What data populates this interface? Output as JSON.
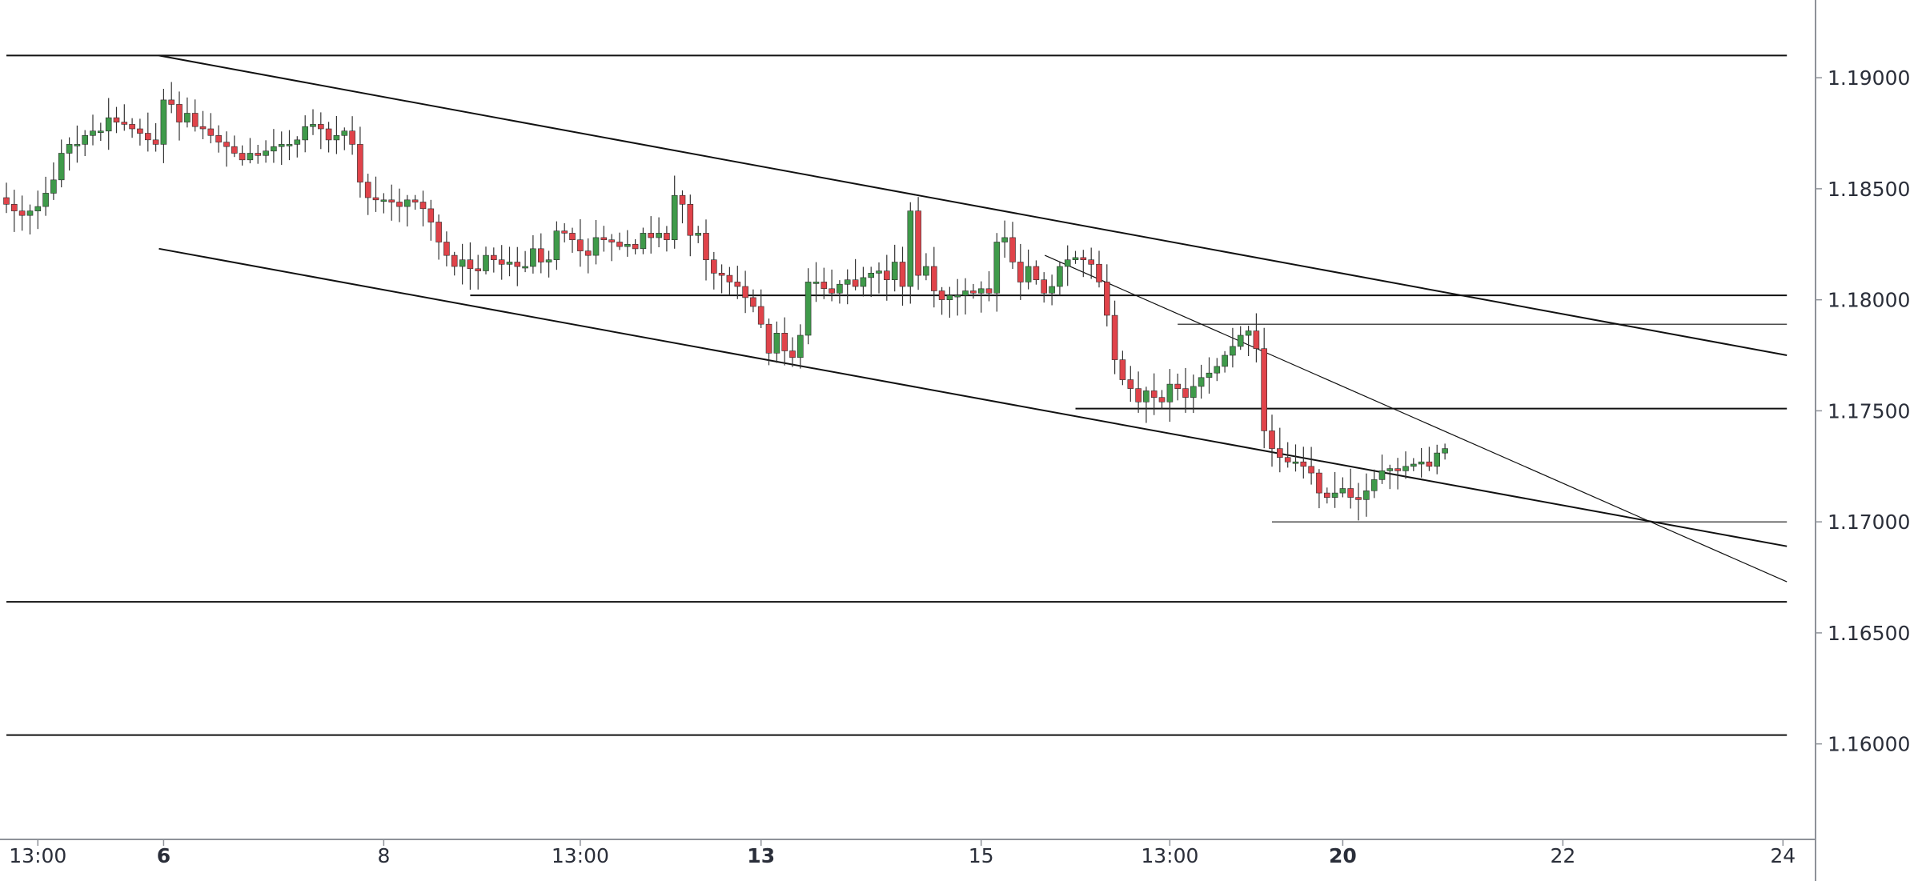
{
  "chart_data": {
    "type": "candlestick",
    "grid": false,
    "colors": {
      "up": "#3f9a4a",
      "down": "#e0434a",
      "wick": "#333333",
      "line": "#111111",
      "axis": "#8e9299",
      "text": "#2a2e39"
    },
    "price_axis": {
      "range": [
        1.1557,
        1.1935
      ],
      "ticks": [
        {
          "value": 1.19,
          "label": "1.19000"
        },
        {
          "value": 1.185,
          "label": "1.18500"
        },
        {
          "value": 1.18,
          "label": "1.18000"
        },
        {
          "value": 1.175,
          "label": "1.17500"
        },
        {
          "value": 1.17,
          "label": "1.17000"
        },
        {
          "value": 1.165,
          "label": "1.16500"
        },
        {
          "value": 1.16,
          "label": "1.16000"
        }
      ]
    },
    "time_axis": {
      "ticks": [
        {
          "label": "13:00",
          "bold": false,
          "index": 4
        },
        {
          "label": "6",
          "bold": true,
          "index": 20
        },
        {
          "label": "8",
          "bold": false,
          "index": 48
        },
        {
          "label": "13:00",
          "bold": false,
          "index": 73
        },
        {
          "label": "13",
          "bold": true,
          "index": 96
        },
        {
          "label": "15",
          "bold": false,
          "index": 124
        },
        {
          "label": "13:00",
          "bold": false,
          "index": 148
        },
        {
          "label": "20",
          "bold": true,
          "index": 170
        },
        {
          "label": "22",
          "bold": false,
          "index": 198
        },
        {
          "label": "24",
          "bold": false,
          "index": 226
        }
      ]
    },
    "closes": [
      1.1843,
      1.184,
      1.1838,
      1.184,
      1.1842,
      1.1848,
      1.1854,
      1.1866,
      1.187,
      1.187,
      1.1874,
      1.1876,
      1.1876,
      1.1882,
      1.188,
      1.1879,
      1.1877,
      1.1875,
      1.1872,
      1.187,
      1.189,
      1.1888,
      1.188,
      1.1884,
      1.1878,
      1.1877,
      1.1874,
      1.1871,
      1.1869,
      1.1866,
      1.1863,
      1.1866,
      1.1865,
      1.1867,
      1.1869,
      1.187,
      1.187,
      1.1872,
      1.1878,
      1.1879,
      1.1877,
      1.1872,
      1.1874,
      1.1876,
      1.187,
      1.1853,
      1.1846,
      1.1845,
      1.1845,
      1.1844,
      1.1842,
      1.1845,
      1.1844,
      1.1841,
      1.1835,
      1.1826,
      1.182,
      1.1815,
      1.1818,
      1.1814,
      1.1813,
      1.182,
      1.1818,
      1.1816,
      1.1817,
      1.1815,
      1.1815,
      1.1823,
      1.1817,
      1.1818,
      1.1831,
      1.183,
      1.1827,
      1.1822,
      1.182,
      1.1828,
      1.1827,
      1.1826,
      1.1824,
      1.1825,
      1.1823,
      1.183,
      1.1828,
      1.183,
      1.1827,
      1.1847,
      1.1843,
      1.1829,
      1.183,
      1.1818,
      1.1812,
      1.1811,
      1.1808,
      1.1806,
      1.1801,
      1.1797,
      1.1789,
      1.1776,
      1.1785,
      1.1777,
      1.1774,
      1.1784,
      1.1808,
      1.1808,
      1.1805,
      1.1803,
      1.1807,
      1.1809,
      1.1806,
      1.181,
      1.1812,
      1.1813,
      1.1809,
      1.1817,
      1.1806,
      1.184,
      1.1811,
      1.1815,
      1.1804,
      1.18,
      1.1802,
      1.1802,
      1.1804,
      1.1803,
      1.1805,
      1.1803,
      1.1826,
      1.1828,
      1.1817,
      1.1808,
      1.1815,
      1.1809,
      1.1803,
      1.1806,
      1.1815,
      1.1818,
      1.1819,
      1.1818,
      1.1816,
      1.1808,
      1.1793,
      1.1773,
      1.1764,
      1.176,
      1.1754,
      1.1759,
      1.1756,
      1.1754,
      1.1762,
      1.176,
      1.1756,
      1.1761,
      1.1765,
      1.1767,
      1.177,
      1.1775,
      1.1779,
      1.1784,
      1.1786,
      1.1778,
      1.1741,
      1.1733,
      1.1729,
      1.1727,
      1.1727,
      1.1725,
      1.1722,
      1.1713,
      1.1711,
      1.1713,
      1.1715,
      1.1711,
      1.171,
      1.1714,
      1.1719,
      1.1723,
      1.1724,
      1.1723,
      1.1725,
      1.1726,
      1.1727,
      1.1725,
      1.1731,
      1.1733
    ],
    "drawings": [
      {
        "id": "hline-1190",
        "kind": "hline",
        "p1": [
          0,
          1.191
        ],
        "p2": [
          226.5,
          1.191
        ],
        "width": 2
      },
      {
        "id": "hline-1166",
        "kind": "hline",
        "p1": [
          0,
          1.1664
        ],
        "p2": [
          226.5,
          1.1664
        ],
        "width": 2
      },
      {
        "id": "hline-1160",
        "kind": "hline",
        "p1": [
          0,
          1.1604
        ],
        "p2": [
          226.5,
          1.1604
        ],
        "width": 2
      },
      {
        "id": "hline-1180",
        "kind": "hline",
        "p1": [
          59,
          1.1802
        ],
        "p2": [
          226.5,
          1.1802
        ],
        "width": 2
      },
      {
        "id": "hline-1175",
        "kind": "hline",
        "p1": [
          136,
          1.1751
        ],
        "p2": [
          226.5,
          1.1751
        ],
        "width": 2
      },
      {
        "id": "hline-1179",
        "kind": "hline",
        "p1": [
          149,
          1.1789
        ],
        "p2": [
          226.5,
          1.1789
        ],
        "width": 1.2
      },
      {
        "id": "hline-1170",
        "kind": "hline",
        "p1": [
          161,
          1.17
        ],
        "p2": [
          226.5,
          1.17
        ],
        "width": 1.2
      },
      {
        "id": "channel-upper",
        "kind": "trendline",
        "p1": [
          19.4,
          1.191
        ],
        "p2": [
          226.5,
          1.1775
        ],
        "width": 2
      },
      {
        "id": "channel-lower",
        "kind": "trendline",
        "p1": [
          19.4,
          1.1823
        ],
        "p2": [
          226.5,
          1.1689
        ],
        "width": 2
      },
      {
        "id": "trendline-thin",
        "kind": "trendline",
        "p1": [
          132.1,
          1.182
        ],
        "p2": [
          226.5,
          1.1673
        ],
        "width": 1.2
      }
    ]
  }
}
